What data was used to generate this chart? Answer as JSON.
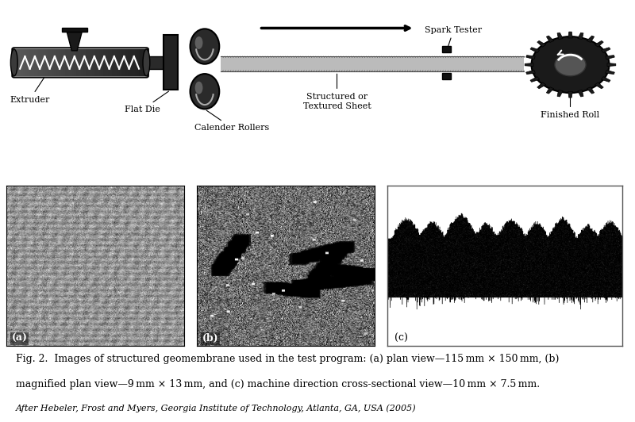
{
  "bg_color": "#ffffff",
  "caption_line1": "Fig. 2.  Images of structured geomembrane used in the test program: (a) plan view—115 mm × 150 mm, (b)",
  "caption_line2": "magnified plan view—9 mm × 13 mm, and (c) machine direction cross-sectional view—10 mm × 7.5 mm.",
  "caption_line3": "After Hebeler, Frost and Myers, Georgia Institute of Technology, Atlanta, GA, USA (2005)",
  "label_a": "(a)",
  "label_b": "(b)",
  "label_c": "(c)",
  "diagram_labels": {
    "extruder": "Extruder",
    "flat_die": "Flat Die",
    "calender_rollers": "Calender Rollers",
    "structured_sheet": "Structured or\nTextured Sheet",
    "spark_tester": "Spark Tester",
    "finished_roll": "Finished Roll"
  }
}
